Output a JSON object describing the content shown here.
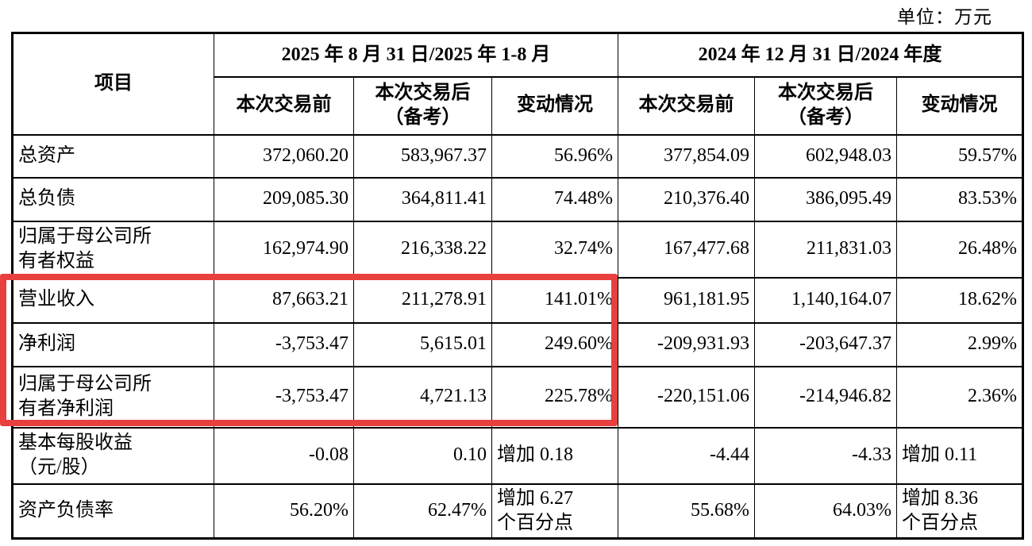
{
  "unit_label": "单位：万元",
  "table": {
    "item_header": "项目",
    "highlight_color": "#e8403e",
    "groups": [
      {
        "title": "2025 年 8 月 31 日/2025 年 1-8 月",
        "subheaders": [
          "本次交易前",
          "本次交易后\n（备考）",
          "变动情况"
        ]
      },
      {
        "title": "2024 年 12 月 31 日/2024 年度",
        "subheaders": [
          "本次交易前",
          "本次交易后\n（备考）",
          "变动情况"
        ]
      }
    ],
    "rows": [
      {
        "label": "总资产",
        "highlighted": false,
        "cells": [
          "372,060.20",
          "583,967.37",
          "56.96%",
          "377,854.09",
          "602,948.03",
          "59.57%"
        ]
      },
      {
        "label": "总负债",
        "highlighted": false,
        "cells": [
          "209,085.30",
          "364,811.41",
          "74.48%",
          "210,376.40",
          "386,095.49",
          "83.53%"
        ]
      },
      {
        "label": "归属于母公司所\n有者权益",
        "highlighted": false,
        "cells": [
          "162,974.90",
          "216,338.22",
          "32.74%",
          "167,477.68",
          "211,831.03",
          "26.48%"
        ]
      },
      {
        "label": "营业收入",
        "highlighted": true,
        "cells": [
          "87,663.21",
          "211,278.91",
          "141.01%",
          "961,181.95",
          "1,140,164.07",
          "18.62%"
        ]
      },
      {
        "label": "净利润",
        "highlighted": true,
        "cells": [
          "-3,753.47",
          "5,615.01",
          "249.60%",
          "-209,931.93",
          "-203,647.37",
          "2.99%"
        ]
      },
      {
        "label": "归属于母公司所\n有者净利润",
        "highlighted": true,
        "cells": [
          "-3,753.47",
          "4,721.13",
          "225.78%",
          "-220,151.06",
          "-214,946.82",
          "2.36%"
        ]
      },
      {
        "label": "基本每股收益\n（元/股）",
        "highlighted": false,
        "cells": [
          "-0.08",
          "0.10",
          "增加 0.18",
          "-4.44",
          "-4.33",
          "增加 0.11"
        ]
      },
      {
        "label": "资产负债率",
        "highlighted": false,
        "cells": [
          "56.20%",
          "62.47%",
          "增加 6.27\n个百分点",
          "55.68%",
          "64.03%",
          "增加 8.36\n个百分点"
        ]
      }
    ]
  }
}
